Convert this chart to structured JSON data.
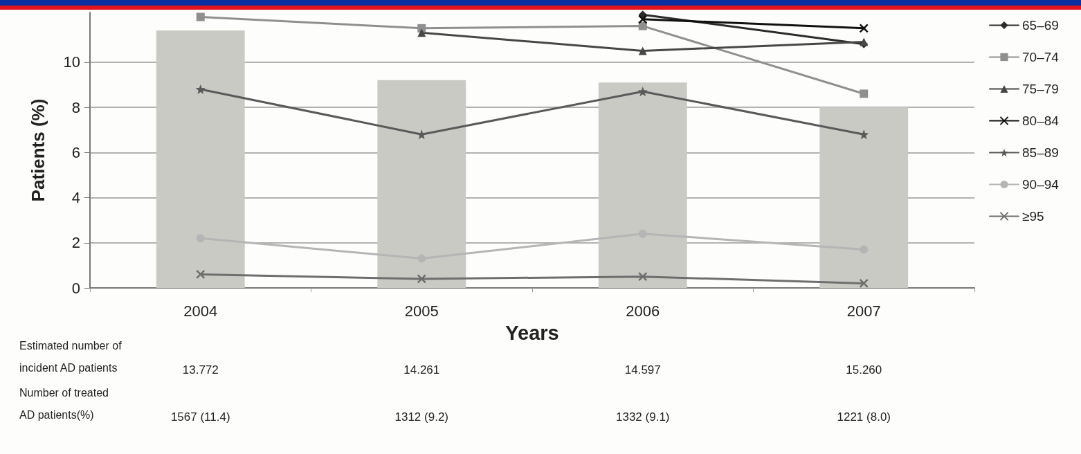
{
  "chart_data": {
    "type": "line",
    "xlabel": "Years",
    "ylabel": "Patients (%)",
    "categories": [
      "2004",
      "2005",
      "2006",
      "2007"
    ],
    "series": [
      {
        "type": "bar",
        "color": "#c9cac4",
        "values": [
          11.4,
          9.2,
          9.1,
          8.0
        ],
        "value_labels": [
          "1567 (11.4)",
          "1312 (9.2)",
          "1332 (9.1)",
          "1221 (8.0)"
        ]
      },
      {
        "name": "65–69",
        "color": "#2b2b2b",
        "marker": "diamond",
        "values": [
          null,
          null,
          12.1,
          10.8
        ]
      },
      {
        "name": "70–74",
        "color": "#8f8f8f",
        "marker": "square",
        "values": [
          12.0,
          11.5,
          11.6,
          8.6
        ]
      },
      {
        "name": "75–79",
        "color": "#474747",
        "marker": "triangle",
        "values": [
          null,
          11.3,
          10.5,
          10.9
        ]
      },
      {
        "name": "80–84",
        "color": "#111111",
        "marker": "cross",
        "values": [
          null,
          null,
          11.9,
          11.5
        ]
      },
      {
        "name": "85–89",
        "color": "#5a5a5a",
        "marker": "star",
        "values": [
          8.8,
          6.8,
          8.7,
          6.8
        ]
      },
      {
        "name": "90–94",
        "color": "#b5b5b5",
        "marker": "circle",
        "values": [
          2.2,
          1.3,
          2.4,
          1.7
        ]
      },
      {
        "name": "≥95",
        "color": "#6e6e6e",
        "marker": "cross",
        "values": [
          0.6,
          0.4,
          0.5,
          0.2
        ]
      }
    ],
    "ylim": [
      0,
      12.2
    ],
    "yticks": [
      0,
      2,
      4,
      6,
      8,
      10
    ],
    "grid": "y",
    "legend": "right",
    "annotations": [
      "Estimated number of\nincident AD patients",
      "13.772",
      "14.261",
      "14.597",
      "15.260",
      "Number of treated\nAD patients(%)"
    ]
  }
}
